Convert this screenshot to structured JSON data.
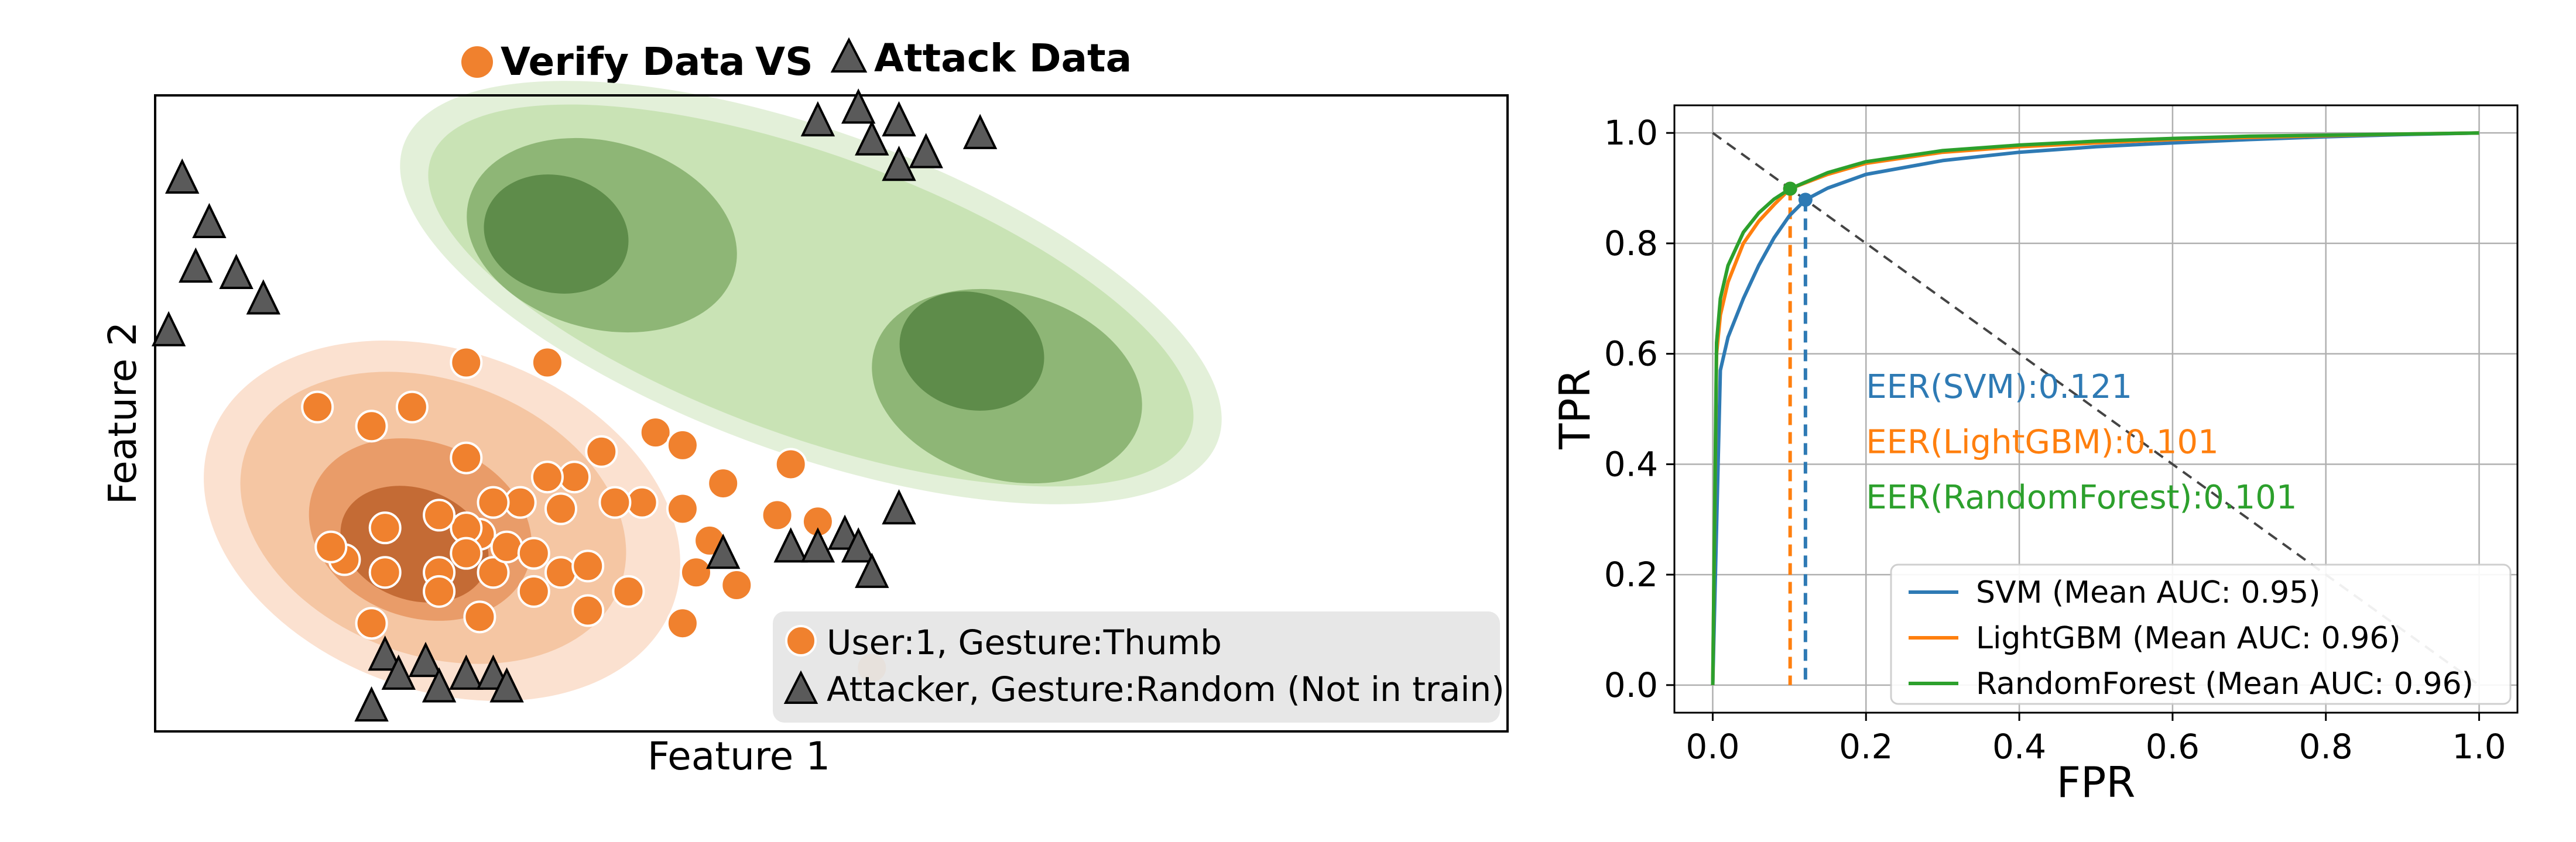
{
  "colors": {
    "verify": "#f0812e",
    "attack": "#5a5a5a",
    "svm": "#2e7ab4",
    "lightgbm": "#ff7f0e",
    "randomforest": "#2ca02c",
    "legend_bg": "#e6e6e6",
    "green_density": [
      "#e3f0d9",
      "#c9e3b5",
      "#8eb676",
      "#5e8c4a"
    ],
    "orange_density": [
      "#fbe1d0",
      "#f5c6a3",
      "#e99c69",
      "#c46b35"
    ]
  },
  "left_panel": {
    "title_verify": "Verify Data",
    "title_vs": "VS",
    "title_attack": "Attack Data",
    "xlabel": "Feature 1",
    "ylabel": "Feature 2",
    "legend": [
      {
        "marker": "circle",
        "label": "User:1, Gesture:Thumb"
      },
      {
        "marker": "triangle",
        "label": "Attacker, Gesture:Random (Not in train)"
      }
    ]
  },
  "chart_data": [
    {
      "type": "scatter",
      "title": "",
      "xlabel": "Feature 1",
      "ylabel": "Feature 2",
      "xlim": [
        0,
        100
      ],
      "ylim": [
        0,
        100
      ],
      "ticks": "none",
      "series": [
        {
          "name": "User:1, Gesture:Thumb",
          "marker": "circle",
          "points": [
            [
              23,
              58
            ],
            [
              12,
              51
            ],
            [
              16,
              48
            ],
            [
              19,
              51
            ],
            [
              23,
              43
            ],
            [
              29,
              58
            ],
            [
              33,
              44
            ],
            [
              37,
              47
            ],
            [
              39,
              45
            ],
            [
              31,
              40
            ],
            [
              42,
              39
            ],
            [
              46,
              34
            ],
            [
              47,
              42
            ],
            [
              41,
              30
            ],
            [
              39,
              35
            ],
            [
              36,
              36
            ],
            [
              34,
              36
            ],
            [
              30,
              35
            ],
            [
              27,
              36
            ],
            [
              29,
              40
            ],
            [
              25,
              36
            ],
            [
              24,
              31
            ],
            [
              23,
              32
            ],
            [
              21,
              34
            ],
            [
              17,
              32
            ],
            [
              14,
              27
            ],
            [
              13,
              29
            ],
            [
              17,
              25
            ],
            [
              21,
              25
            ],
            [
              23,
              28
            ],
            [
              25,
              25
            ],
            [
              26,
              29
            ],
            [
              28,
              28
            ],
            [
              30,
              25
            ],
            [
              32,
              26
            ],
            [
              28,
              22
            ],
            [
              32,
              19
            ],
            [
              35,
              22
            ],
            [
              39,
              17
            ],
            [
              40,
              25
            ],
            [
              16,
              17
            ],
            [
              24,
              18
            ],
            [
              21,
              22
            ],
            [
              43,
              23
            ],
            [
              49,
              33
            ],
            [
              53,
              10
            ]
          ]
        },
        {
          "name": "Attacker, Gesture:Random (Not in train)",
          "marker": "triangle",
          "points": [
            [
              2,
              87
            ],
            [
              4,
              80
            ],
            [
              3,
              73
            ],
            [
              6,
              72
            ],
            [
              8,
              68
            ],
            [
              1,
              63
            ],
            [
              49,
              96
            ],
            [
              52,
              98
            ],
            [
              55,
              96
            ],
            [
              53,
              93
            ],
            [
              55,
              89
            ],
            [
              57,
              91
            ],
            [
              61,
              94
            ],
            [
              55,
              35
            ],
            [
              51,
              31
            ],
            [
              47,
              29
            ],
            [
              49,
              29
            ],
            [
              52,
              29
            ],
            [
              53,
              25
            ],
            [
              42,
              28
            ],
            [
              17,
              12
            ],
            [
              18,
              9
            ],
            [
              20,
              11
            ],
            [
              21,
              7
            ],
            [
              23,
              9
            ],
            [
              25,
              9
            ],
            [
              26,
              7
            ],
            [
              16,
              4
            ]
          ]
        }
      ]
    },
    {
      "type": "line",
      "title": "",
      "xlabel": "FPR",
      "ylabel": "TPR",
      "xlim": [
        -0.05,
        1.05
      ],
      "ylim": [
        -0.05,
        1.05
      ],
      "xticks": [
        "0.0",
        "0.2",
        "0.4",
        "0.6",
        "0.8",
        "1.0"
      ],
      "yticks": [
        "0.0",
        "0.2",
        "0.4",
        "0.6",
        "0.8",
        "1.0"
      ],
      "grid": true,
      "legend_position": "lower right",
      "series": [
        {
          "name": "SVM (Mean AUC: 0.95)",
          "key": "svm",
          "x": [
            0,
            0.01,
            0.02,
            0.04,
            0.06,
            0.08,
            0.1,
            0.121,
            0.15,
            0.2,
            0.3,
            0.4,
            0.5,
            0.6,
            0.7,
            0.8,
            0.9,
            1.0
          ],
          "y": [
            0,
            0.57,
            0.63,
            0.7,
            0.76,
            0.81,
            0.85,
            0.879,
            0.9,
            0.925,
            0.95,
            0.965,
            0.975,
            0.982,
            0.988,
            0.993,
            0.997,
            1.0
          ]
        },
        {
          "name": "LightGBM (Mean AUC: 0.96)",
          "key": "lightgbm",
          "x": [
            0,
            0.005,
            0.01,
            0.02,
            0.04,
            0.06,
            0.08,
            0.101,
            0.15,
            0.2,
            0.3,
            0.4,
            0.5,
            0.6,
            0.7,
            0.8,
            0.9,
            1.0
          ],
          "y": [
            0,
            0.6,
            0.67,
            0.73,
            0.8,
            0.84,
            0.87,
            0.899,
            0.925,
            0.945,
            0.965,
            0.975,
            0.982,
            0.988,
            0.992,
            0.995,
            0.998,
            1.0
          ]
        },
        {
          "name": "RandomForest (Mean AUC: 0.96)",
          "key": "randomforest",
          "x": [
            0,
            0.005,
            0.01,
            0.02,
            0.04,
            0.06,
            0.08,
            0.101,
            0.15,
            0.2,
            0.3,
            0.4,
            0.5,
            0.6,
            0.7,
            0.8,
            0.9,
            1.0
          ],
          "y": [
            0,
            0.62,
            0.7,
            0.76,
            0.82,
            0.855,
            0.88,
            0.899,
            0.928,
            0.948,
            0.968,
            0.978,
            0.985,
            0.99,
            0.994,
            0.996,
            0.998,
            1.0
          ]
        }
      ],
      "eer_markers": [
        {
          "key": "svm",
          "x": 0.121,
          "y": 0.879
        },
        {
          "key": "lightgbm",
          "x": 0.101,
          "y": 0.899
        },
        {
          "key": "randomforest",
          "x": 0.101,
          "y": 0.899
        }
      ],
      "eer_line": {
        "x": [
          0,
          1
        ],
        "y": [
          1,
          0
        ]
      },
      "annotations": [
        {
          "key": "svm",
          "text": "EER(SVM):0.121",
          "x": 0.2,
          "y": 0.52
        },
        {
          "key": "lightgbm",
          "text": "EER(LightGBM):0.101",
          "x": 0.2,
          "y": 0.42
        },
        {
          "key": "randomforest",
          "text": "EER(RandomForest):0.101",
          "x": 0.2,
          "y": 0.32
        }
      ]
    }
  ]
}
